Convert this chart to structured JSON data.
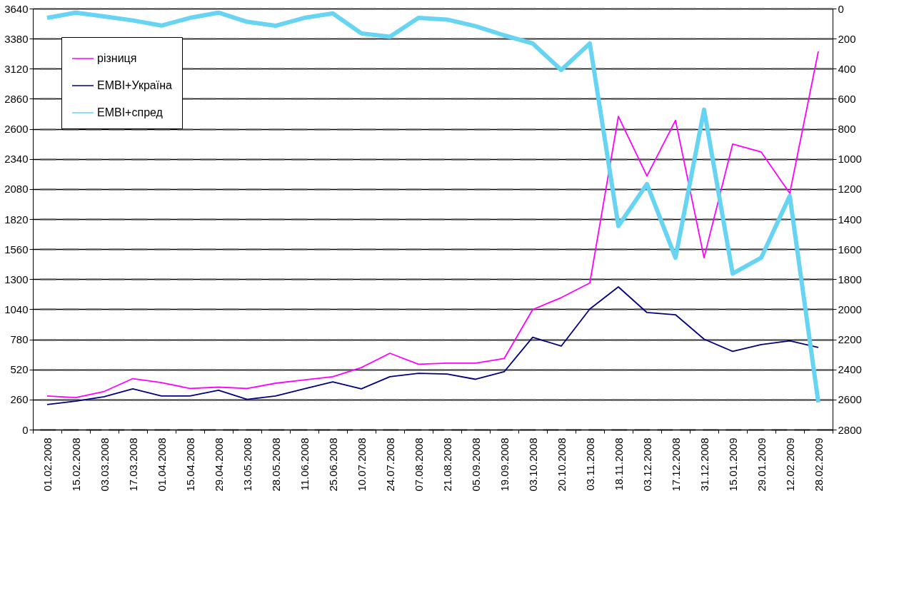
{
  "chart_data": {
    "type": "line",
    "categories": [
      "01.02.2008",
      "15.02.2008",
      "03.03.2008",
      "17.03.2008",
      "01.04.2008",
      "15.04.2008",
      "29.04.2008",
      "13.05.2008",
      "28.05.2008",
      "11.06.2008",
      "25.06.2008",
      "10.07.2008",
      "24.07.2008",
      "07.08.2008",
      "21.08.2008",
      "05.09.2008",
      "19.09.2008",
      "03.10.2008",
      "20.10.2008",
      "03.11.2008",
      "18.11.2008",
      "03.12.2008",
      "17.12.2008",
      "31.12.2008",
      "15.01.2009",
      "29.01.2009",
      "12.02.2009",
      "28.02.2009"
    ],
    "series": [
      {
        "name": "різниця",
        "color": "#ff00ff",
        "values": [
          291,
          277,
          330,
          441,
          407,
          356,
          367,
          356,
          401,
          430,
          457,
          536,
          660,
          565,
          574,
          574,
          614,
          1038,
          1141,
          1268,
          2708,
          2192,
          2674,
          1486,
          2468,
          2400,
          2043,
          3270
        ]
      },
      {
        "name": "EMBI+Україна",
        "color": "#000080",
        "values": [
          217,
          246,
          284,
          352,
          291,
          291,
          340,
          262,
          291,
          352,
          412,
          352,
          457,
          486,
          481,
          435,
          500,
          798,
          722,
          1043,
          1234,
          1012,
          993,
          782,
          676,
          735,
          767,
          710
        ]
      },
      {
        "name": "EMBI+спред",
        "color": "#66d4f2",
        "axis": "y2",
        "values": [
          62,
          27,
          52,
          79,
          113,
          62,
          27,
          88,
          114,
          62,
          32,
          165,
          187,
          62,
          73,
          117,
          178,
          232,
          408,
          232,
          1446,
          1167,
          1657,
          672,
          1763,
          1657,
          1246,
          2619
        ]
      }
    ],
    "ylim": [
      0,
      3640
    ],
    "yticks": [
      0,
      260,
      520,
      780,
      1040,
      1300,
      1560,
      1820,
      2080,
      2340,
      2600,
      2860,
      3120,
      3380,
      3640
    ],
    "y2lim": [
      2800,
      0
    ],
    "y2ticks": [
      0,
      200,
      400,
      600,
      800,
      1000,
      1200,
      1400,
      1600,
      1800,
      2000,
      2200,
      2400,
      2600,
      2800
    ],
    "grid": "y",
    "legend": "top left",
    "marker": "none",
    "line_style": "solid"
  }
}
